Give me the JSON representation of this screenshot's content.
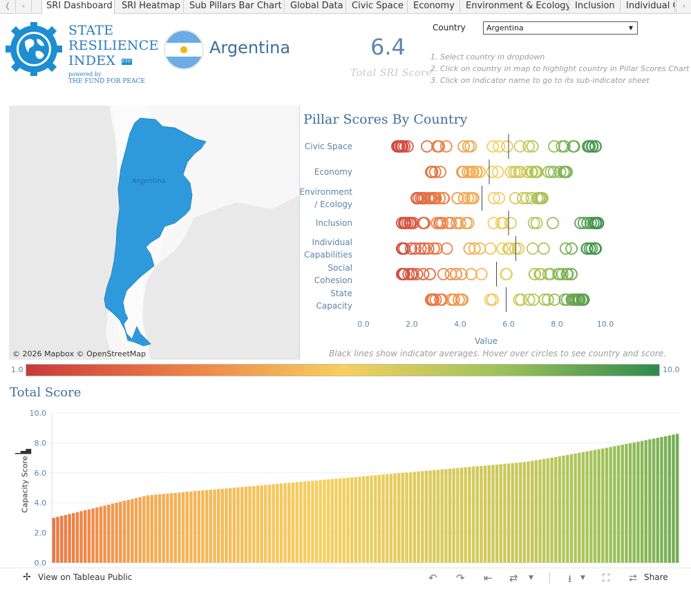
{
  "tabs": [
    {
      "label": "SRI Dashboard",
      "active": true
    },
    {
      "label": "SRI Heatmap"
    },
    {
      "label": "Sub Pillars Bar Chart"
    },
    {
      "label": "Global Data"
    },
    {
      "label": "Civic Space"
    },
    {
      "label": "Economy"
    },
    {
      "label": "Environment & Ecology"
    },
    {
      "label": "Inclusion"
    },
    {
      "label": "Individual C"
    }
  ],
  "header": {
    "brand_lines": [
      "STATE",
      "RESILIENCE",
      "INDEX"
    ],
    "powered_by": "powered by",
    "org": "THE FUND FOR PEACE",
    "badge": "FFP",
    "country": "Argentina",
    "total_score": "6.4",
    "total_label": "Total SRI Score",
    "country_filter_label": "Country",
    "country_filter_value": "Argentina",
    "instructions": [
      "1. Select country in dropdown",
      "2. Click on country in map to highlight country in Pillar Scores Chart",
      "3. Click on Indicator name to go to its sub-indicator sheet"
    ]
  },
  "map": {
    "country_label": "Argentina",
    "attribution": "© 2026 Mapbox  © OpenStreetMap",
    "highlight_color": "#2f9adb"
  },
  "pillar_chart": {
    "title": "Pillar Scores By Country",
    "x_axis_title": "Value",
    "x_ticks": [
      "0.0",
      "2.0",
      "4.0",
      "6.0",
      "8.0",
      "10.0"
    ],
    "note": "Black lines show indicator averages. Hover over circles to see country and score.",
    "pillars": [
      {
        "lines": [
          "Civic Space"
        ],
        "min": 1.4,
        "max": 9.6,
        "avg": 6.0
      },
      {
        "lines": [
          "Economy"
        ],
        "min": 2.8,
        "max": 8.4,
        "avg": 5.2
      },
      {
        "lines": [
          "Environment",
          "/ Ecology"
        ],
        "min": 2.2,
        "max": 7.4,
        "avg": 4.9
      },
      {
        "lines": [
          "Inclusion"
        ],
        "min": 1.6,
        "max": 9.7,
        "avg": 6.0
      },
      {
        "lines": [
          "Individual",
          "Capabilities"
        ],
        "min": 1.6,
        "max": 9.6,
        "avg": 6.3
      },
      {
        "lines": [
          "Social",
          "Cohesion"
        ],
        "min": 1.6,
        "max": 8.6,
        "avg": 5.5
      },
      {
        "lines": [
          "State",
          "Capacity"
        ],
        "min": 2.8,
        "max": 9.1,
        "avg": 5.9
      }
    ]
  },
  "color_legend": {
    "min": "1.0",
    "max": "10.0",
    "colors": [
      "#c93a3c",
      "#ee7f45",
      "#f7cf5e",
      "#9cc25a",
      "#2f8a4c"
    ]
  },
  "total_chart": {
    "title": "Total Score",
    "y_label": "Capacity Score",
    "y_ticks": [
      "0.0",
      "2.0",
      "4.0",
      "6.0",
      "8.0",
      "10.0"
    ],
    "bar_count": 160,
    "min": 3.0,
    "max": 8.6
  },
  "chart_data": [
    {
      "type": "scatter",
      "title": "Pillar Scores By Country",
      "xlabel": "Value",
      "xlim": [
        0,
        10
      ],
      "categories": [
        "Civic Space",
        "Economy",
        "Environment / Ecology",
        "Inclusion",
        "Individual Capabilities",
        "Social Cohesion",
        "State Capacity"
      ],
      "ranges": [
        [
          1.4,
          9.6
        ],
        [
          2.8,
          8.4
        ],
        [
          2.2,
          7.4
        ],
        [
          1.6,
          9.7
        ],
        [
          1.6,
          9.6
        ],
        [
          1.6,
          8.6
        ],
        [
          2.8,
          9.1
        ]
      ],
      "averages": [
        6.0,
        5.2,
        4.9,
        6.0,
        6.3,
        5.5,
        5.9
      ]
    },
    {
      "type": "bar",
      "title": "Total Score",
      "ylabel": "Capacity Score",
      "ylim": [
        0,
        10
      ],
      "sorted_ascending": true,
      "min": 3.0,
      "max": 8.6,
      "count": 160
    }
  ],
  "footer": {
    "tableau_label": "View on Tableau Public",
    "share_label": "Share"
  }
}
